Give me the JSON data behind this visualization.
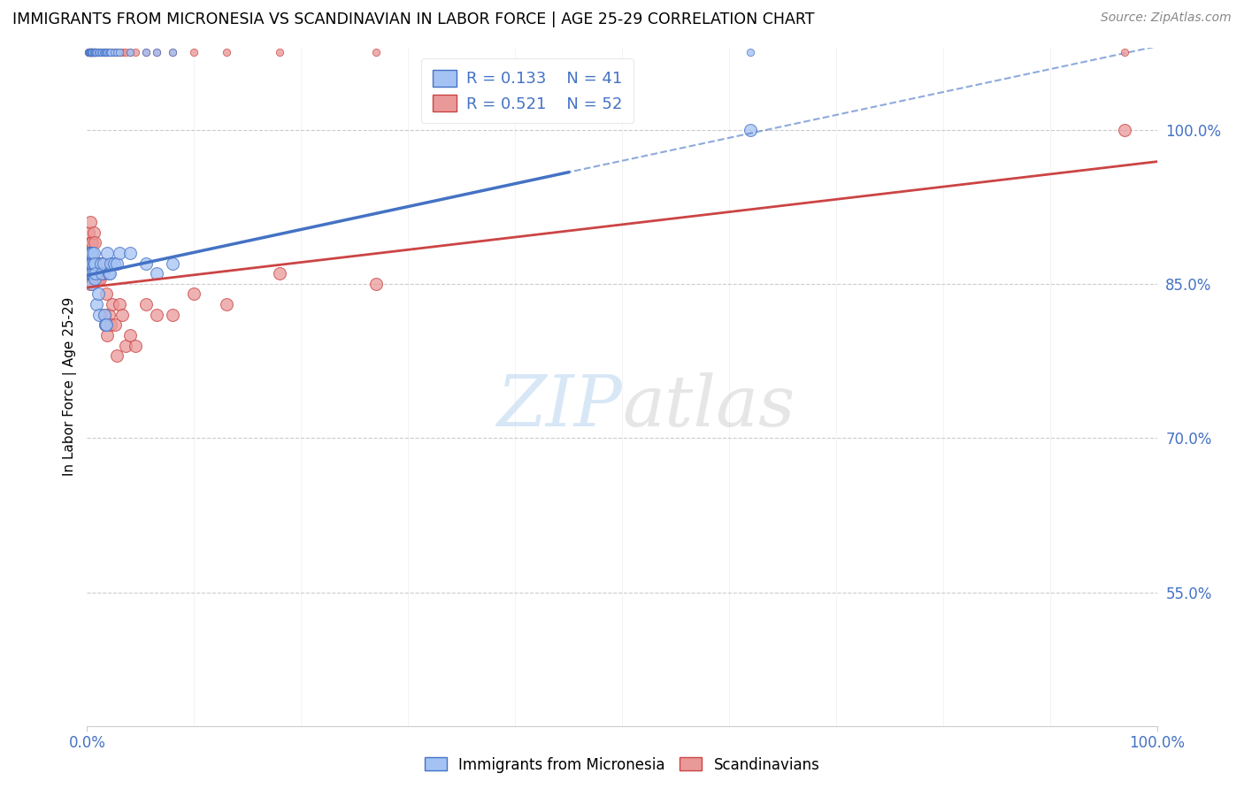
{
  "title": "IMMIGRANTS FROM MICRONESIA VS SCANDINAVIAN IN LABOR FORCE | AGE 25-29 CORRELATION CHART",
  "source": "Source: ZipAtlas.com",
  "ylabel": "In Labor Force | Age 25-29",
  "ytick_labels": [
    "55.0%",
    "70.0%",
    "85.0%",
    "100.0%"
  ],
  "ytick_values": [
    0.55,
    0.7,
    0.85,
    1.0
  ],
  "xlim": [
    0.0,
    1.0
  ],
  "ylim": [
    0.42,
    1.08
  ],
  "legend_r_micronesia": "R = 0.133",
  "legend_n_micronesia": "N = 41",
  "legend_r_scandinavian": "R = 0.521",
  "legend_n_scandinavian": "N = 52",
  "micronesia_color": "#a4c2f4",
  "scandinavian_color": "#ea9999",
  "micronesia_line_color": "#4472c4",
  "scandinavian_line_color": "#cc4444",
  "watermark_zip": "ZIP",
  "watermark_atlas": "atlas",
  "micronesia_x": [
    0.001,
    0.002,
    0.002,
    0.003,
    0.003,
    0.003,
    0.003,
    0.004,
    0.004,
    0.004,
    0.005,
    0.005,
    0.005,
    0.005,
    0.006,
    0.006,
    0.006,
    0.007,
    0.007,
    0.008,
    0.009,
    0.01,
    0.011,
    0.013,
    0.014,
    0.015,
    0.016,
    0.017,
    0.018,
    0.019,
    0.02,
    0.021,
    0.022,
    0.025,
    0.028,
    0.03,
    0.04,
    0.055,
    0.065,
    0.08,
    0.62
  ],
  "micronesia_y": [
    0.87,
    0.87,
    0.88,
    0.87,
    0.86,
    0.87,
    0.88,
    0.86,
    0.87,
    0.88,
    0.85,
    0.86,
    0.87,
    0.88,
    0.86,
    0.87,
    0.88,
    0.855,
    0.87,
    0.86,
    0.83,
    0.84,
    0.82,
    0.87,
    0.86,
    0.87,
    0.82,
    0.81,
    0.81,
    0.88,
    0.86,
    0.86,
    0.87,
    0.87,
    0.87,
    0.88,
    0.88,
    0.87,
    0.86,
    0.87,
    1.0
  ],
  "scandinavian_x": [
    0.001,
    0.001,
    0.002,
    0.002,
    0.003,
    0.003,
    0.003,
    0.004,
    0.004,
    0.004,
    0.005,
    0.005,
    0.005,
    0.006,
    0.006,
    0.006,
    0.007,
    0.007,
    0.007,
    0.008,
    0.008,
    0.009,
    0.009,
    0.01,
    0.01,
    0.011,
    0.012,
    0.013,
    0.014,
    0.015,
    0.016,
    0.017,
    0.018,
    0.019,
    0.02,
    0.022,
    0.024,
    0.026,
    0.028,
    0.03,
    0.033,
    0.036,
    0.04,
    0.045,
    0.055,
    0.065,
    0.08,
    0.1,
    0.13,
    0.18,
    0.27,
    0.97
  ],
  "scandinavian_y": [
    0.87,
    0.9,
    0.86,
    0.88,
    0.85,
    0.87,
    0.91,
    0.86,
    0.87,
    0.89,
    0.86,
    0.87,
    0.89,
    0.855,
    0.87,
    0.9,
    0.86,
    0.87,
    0.89,
    0.86,
    0.87,
    0.855,
    0.87,
    0.855,
    0.87,
    0.86,
    0.855,
    0.86,
    0.87,
    0.86,
    0.82,
    0.81,
    0.84,
    0.8,
    0.82,
    0.81,
    0.83,
    0.81,
    0.78,
    0.83,
    0.82,
    0.79,
    0.8,
    0.79,
    0.83,
    0.82,
    0.82,
    0.84,
    0.83,
    0.86,
    0.85,
    1.0
  ]
}
